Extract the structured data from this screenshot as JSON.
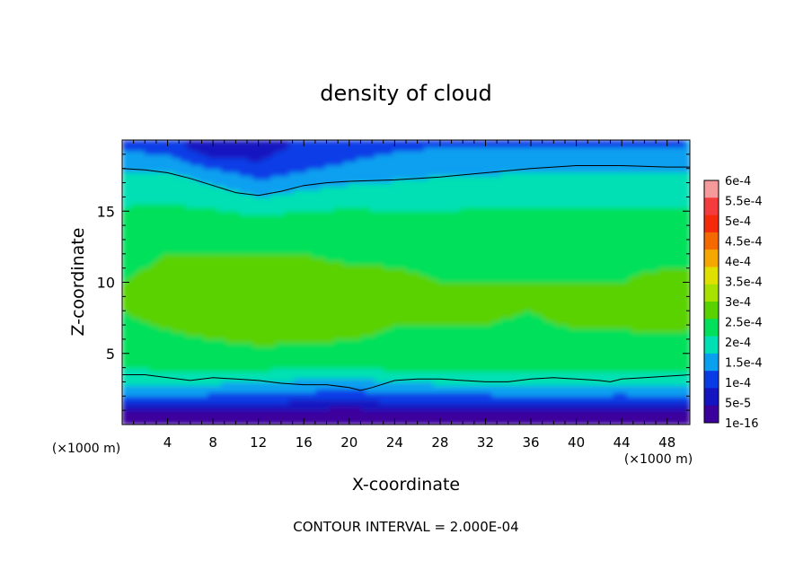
{
  "chart_data": {
    "type": "heatmap",
    "title": "density of cloud",
    "xlabel": "X-coordinate",
    "ylabel": "Z-coordinate",
    "x_unit": "(×1000 m)",
    "y_unit": "(×1000 m)",
    "xlim": [
      0,
      50
    ],
    "ylim": [
      0,
      20
    ],
    "x_ticks": [
      4,
      8,
      12,
      16,
      20,
      24,
      28,
      32,
      36,
      40,
      44,
      48
    ],
    "y_ticks": [
      5,
      10,
      15
    ],
    "footer": "CONTOUR INTERVAL = 2.000E-04",
    "contour_interval": 0.0002,
    "colorbar": {
      "labels": [
        "6e-4",
        "5.5e-4",
        "5e-4",
        "4.5e-4",
        "4e-4",
        "3.5e-4",
        "3e-4",
        "2.5e-4",
        "2e-4",
        "1.5e-4",
        "1e-4",
        "5e-5",
        "1e-16"
      ],
      "colors": [
        "#f59a9a",
        "#f53c3c",
        "#f52a0a",
        "#f56a00",
        "#f5a800",
        "#e0e000",
        "#a8e000",
        "#5ad200",
        "#00e05a",
        "#00e0b4",
        "#0aa0f0",
        "#0a3ce6",
        "#1414c0",
        "#3c009c"
      ]
    },
    "field": {
      "description_values": "approximate cloud density (kg/m^3) sampled on x (×1000 m) by z (×1000 m)",
      "x": [
        0,
        4,
        8,
        12,
        16,
        20,
        24,
        28,
        32,
        36,
        40,
        44,
        48,
        50
      ],
      "z": [
        0.5,
        1.2,
        2,
        3,
        4,
        6,
        8,
        10,
        12,
        14,
        16,
        17.5,
        18.5,
        19.5
      ],
      "values": [
        [
          1e-05,
          1e-05,
          1e-05,
          1e-05,
          1e-05,
          1e-05,
          1e-05,
          1e-05,
          1e-05,
          1e-05,
          1e-05,
          1e-05,
          1e-05,
          1e-05
        ],
        [
          8e-05,
          8e-05,
          7e-05,
          7e-05,
          6e-05,
          5e-05,
          7e-05,
          7e-05,
          7e-05,
          7e-05,
          7e-05,
          6e-05,
          7e-05,
          7e-05
        ],
        [
          0.00015,
          0.00015,
          0.00014,
          0.00014,
          0.00013,
          0.00012,
          0.00014,
          0.00014,
          0.00014,
          0.00015,
          0.00015,
          0.00014,
          0.00015,
          0.00015
        ],
        [
          0.00021,
          0.00021,
          0.00021,
          0.0002,
          0.00019,
          0.00018,
          0.0002,
          0.00021,
          0.00021,
          0.00021,
          0.00021,
          0.00021,
          0.00021,
          0.00021
        ],
        [
          0.00025,
          0.00026,
          0.00026,
          0.00026,
          0.00025,
          0.00025,
          0.00026,
          0.00026,
          0.00026,
          0.00026,
          0.00026,
          0.00026,
          0.00026,
          0.00026
        ],
        [
          0.00028,
          0.00029,
          0.0003,
          0.00031,
          0.00031,
          0.0003,
          0.00029,
          0.00029,
          0.00029,
          0.00028,
          0.00029,
          0.00029,
          0.00029,
          0.00029
        ],
        [
          0.0003,
          0.00032,
          0.00033,
          0.00034,
          0.00035,
          0.00034,
          0.00031,
          0.00031,
          0.00031,
          0.0003,
          0.00032,
          0.00032,
          0.00033,
          0.00032
        ],
        [
          0.0003,
          0.00031,
          0.00031,
          0.00032,
          0.00032,
          0.00032,
          0.00031,
          0.0003,
          0.0003,
          0.0003,
          0.0003,
          0.0003,
          0.00031,
          0.00031
        ],
        [
          0.00029,
          0.0003,
          0.0003,
          0.0003,
          0.0003,
          0.00029,
          0.00029,
          0.00029,
          0.00029,
          0.00029,
          0.00029,
          0.00029,
          0.00029,
          0.00029
        ],
        [
          0.00027,
          0.00028,
          0.00028,
          0.00028,
          0.00028,
          0.00028,
          0.00027,
          0.00027,
          0.00027,
          0.00027,
          0.00027,
          0.00027,
          0.00027,
          0.00027
        ],
        [
          0.00024,
          0.00024,
          0.00023,
          0.0002,
          0.00022,
          0.00023,
          0.00023,
          0.00023,
          0.00024,
          0.00024,
          0.00024,
          0.00024,
          0.00024,
          0.00024
        ],
        [
          0.00021,
          0.00021,
          0.00018,
          0.00014,
          0.00016,
          0.00018,
          0.00019,
          0.0002,
          0.0002,
          0.00021,
          0.00021,
          0.00021,
          0.00021,
          0.00021
        ],
        [
          0.00018,
          0.00017,
          0.00012,
          0.0001,
          0.00013,
          0.00015,
          0.00017,
          0.00018,
          0.00018,
          0.00018,
          0.00018,
          0.00018,
          0.00018,
          0.00018
        ],
        [
          0.00014,
          0.00013,
          5e-05,
          8e-05,
          0.00011,
          0.00012,
          0.00014,
          0.00015,
          0.00015,
          0.00015,
          0.00015,
          0.00015,
          0.00015,
          0.00015
        ]
      ]
    },
    "contour_lines": [
      {
        "level": 0.0002,
        "name": "lower",
        "points": [
          [
            0,
            3.5
          ],
          [
            2,
            3.5
          ],
          [
            4,
            3.3
          ],
          [
            6,
            3.1
          ],
          [
            8,
            3.3
          ],
          [
            10,
            3.2
          ],
          [
            12,
            3.1
          ],
          [
            14,
            2.9
          ],
          [
            16,
            2.8
          ],
          [
            18,
            2.8
          ],
          [
            20,
            2.6
          ],
          [
            21,
            2.4
          ],
          [
            22,
            2.6
          ],
          [
            24,
            3.1
          ],
          [
            26,
            3.2
          ],
          [
            28,
            3.2
          ],
          [
            30,
            3.1
          ],
          [
            32,
            3.0
          ],
          [
            34,
            3.0
          ],
          [
            36,
            3.2
          ],
          [
            38,
            3.3
          ],
          [
            40,
            3.2
          ],
          [
            42,
            3.1
          ],
          [
            43,
            3.0
          ],
          [
            44,
            3.2
          ],
          [
            46,
            3.3
          ],
          [
            48,
            3.4
          ],
          [
            50,
            3.5
          ]
        ]
      },
      {
        "level": 0.0002,
        "name": "upper",
        "points": [
          [
            0,
            18.0
          ],
          [
            2,
            17.9
          ],
          [
            4,
            17.7
          ],
          [
            6,
            17.3
          ],
          [
            8,
            16.8
          ],
          [
            10,
            16.3
          ],
          [
            12,
            16.1
          ],
          [
            14,
            16.4
          ],
          [
            16,
            16.8
          ],
          [
            18,
            17.0
          ],
          [
            20,
            17.1
          ],
          [
            24,
            17.2
          ],
          [
            28,
            17.4
          ],
          [
            32,
            17.7
          ],
          [
            36,
            18.0
          ],
          [
            40,
            18.2
          ],
          [
            44,
            18.2
          ],
          [
            48,
            18.1
          ],
          [
            50,
            18.1
          ]
        ]
      }
    ],
    "grid": false
  }
}
